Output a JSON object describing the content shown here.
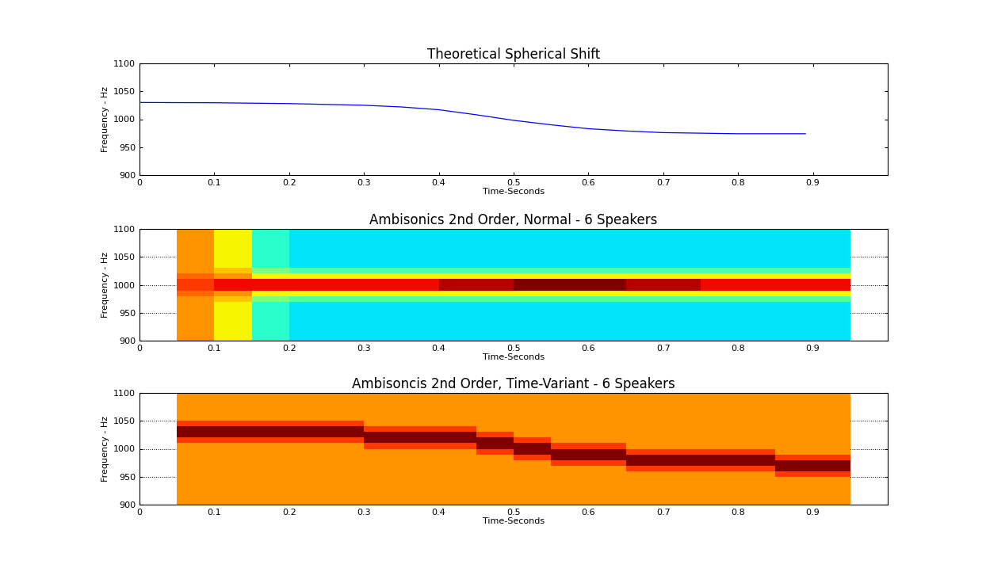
{
  "chart_data": [
    {
      "type": "line",
      "title": "Theoretical Spherical Shift",
      "x_label": "Time-Seconds",
      "y_label": "Frequency - Hz",
      "x": [
        0,
        0.1,
        0.2,
        0.3,
        0.35,
        0.4,
        0.45,
        0.5,
        0.55,
        0.6,
        0.65,
        0.7,
        0.75,
        0.8,
        0.89
      ],
      "series": [
        {
          "name": "Theoretical Spherical Shift",
          "color": "#0000ff",
          "values": [
            1030,
            1029.5,
            1028,
            1025,
            1022,
            1017,
            1008,
            998,
            990,
            983,
            979,
            976,
            975,
            974,
            974
          ]
        }
      ],
      "xlim": [
        0,
        1
      ],
      "xticks": [
        0,
        0.1,
        0.2,
        0.3,
        0.4,
        0.5,
        0.6,
        0.7,
        0.8,
        0.9
      ],
      "ylim": [
        900,
        1100
      ],
      "yticks": [
        900,
        950,
        1000,
        1050,
        1100
      ],
      "grid": false
    },
    {
      "type": "heatmap",
      "title": "Ambisonics 2nd Order, Normal - 6 Speakers",
      "x_label": "Time-Seconds",
      "y_label": "Frequency - Hz",
      "x_edges": [
        0.05,
        0.1,
        0.15,
        0.2,
        0.25,
        0.3,
        0.35,
        0.4,
        0.45,
        0.5,
        0.55,
        0.6,
        0.65,
        0.7,
        0.75,
        0.8,
        0.85,
        0.9,
        0.95
      ],
      "y_edges": [
        900,
        910,
        920,
        930,
        940,
        950,
        960,
        970,
        980,
        990,
        1000,
        1010,
        1020,
        1030,
        1040,
        1050,
        1060,
        1070,
        1080,
        1090,
        1100
      ],
      "zlim": [
        0,
        10
      ],
      "cells": [
        [
          7.5,
          6.5,
          4,
          3.5,
          3.5,
          3.5,
          3.5,
          3.5,
          3.5,
          3.5,
          3.5,
          3.5,
          3.5,
          3.5,
          3.5,
          3.5,
          3.5,
          3.5
        ],
        [
          7.5,
          6.5,
          4,
          3.5,
          3.5,
          3.5,
          3.5,
          3.5,
          3.5,
          3.5,
          3.5,
          3.5,
          3.5,
          3.5,
          3.5,
          3.5,
          3.5,
          3.5
        ],
        [
          7.5,
          6.5,
          4,
          3.5,
          3.5,
          3.5,
          3.5,
          3.5,
          3.5,
          3.5,
          3.5,
          3.5,
          3.5,
          3.5,
          3.5,
          3.5,
          3.5,
          3.5
        ],
        [
          7.5,
          6.5,
          4,
          3.5,
          3.5,
          3.5,
          3.5,
          3.5,
          3.5,
          3.5,
          3.5,
          3.5,
          3.5,
          3.5,
          3.5,
          3.5,
          3.5,
          3.5
        ],
        [
          7.5,
          6.5,
          4,
          3.5,
          3.5,
          3.5,
          3.5,
          3.5,
          3.5,
          3.5,
          3.5,
          3.5,
          3.5,
          3.5,
          3.5,
          3.5,
          3.5,
          3.5
        ],
        [
          7.5,
          6.5,
          4,
          3.5,
          3.5,
          3.5,
          3.5,
          3.5,
          3.5,
          3.5,
          3.5,
          3.5,
          3.5,
          3.5,
          3.5,
          3.5,
          3.5,
          3.5
        ],
        [
          7.5,
          6.5,
          4,
          3.5,
          3.5,
          3.5,
          3.5,
          3.5,
          3.5,
          3.5,
          3.5,
          3.5,
          3.5,
          3.5,
          3.5,
          3.5,
          3.5,
          3.5
        ],
        [
          7.5,
          7,
          5,
          4.5,
          4.5,
          4.5,
          4.5,
          4.5,
          4.5,
          4.5,
          4.5,
          4.5,
          4.5,
          4.5,
          4.5,
          4.5,
          4.5,
          4.5
        ],
        [
          8,
          7.5,
          6.5,
          6.5,
          6.5,
          6.5,
          6.5,
          6.5,
          6.5,
          6.5,
          6.5,
          6.5,
          6.5,
          6.5,
          6.5,
          6.5,
          6.5,
          6.5
        ],
        [
          8.5,
          9,
          9,
          9,
          9,
          9,
          9,
          9.5,
          9.5,
          10,
          10,
          10,
          9.5,
          9.5,
          9,
          9,
          9,
          9
        ],
        [
          8.5,
          9,
          9,
          9,
          9,
          9,
          9,
          9.5,
          9.5,
          10,
          10,
          10,
          9.5,
          9.5,
          9,
          9,
          9,
          9
        ],
        [
          8,
          7.5,
          6.5,
          6.5,
          6.5,
          6.5,
          6.5,
          6.5,
          6.5,
          6.5,
          6.5,
          6.5,
          6.5,
          6.5,
          6.5,
          6.5,
          6.5,
          6.5
        ],
        [
          7.5,
          7,
          5,
          4.5,
          4.5,
          4.5,
          4.5,
          4.5,
          4.5,
          4.5,
          4.5,
          4.5,
          4.5,
          4.5,
          4.5,
          4.5,
          4.5,
          4.5
        ],
        [
          7.5,
          6.5,
          4,
          3.5,
          3.5,
          3.5,
          3.5,
          3.5,
          3.5,
          3.5,
          3.5,
          3.5,
          3.5,
          3.5,
          3.5,
          3.5,
          3.5,
          3.5
        ],
        [
          7.5,
          6.5,
          4,
          3.5,
          3.5,
          3.5,
          3.5,
          3.5,
          3.5,
          3.5,
          3.5,
          3.5,
          3.5,
          3.5,
          3.5,
          3.5,
          3.5,
          3.5
        ],
        [
          7.5,
          6.5,
          4,
          3.5,
          3.5,
          3.5,
          3.5,
          3.5,
          3.5,
          3.5,
          3.5,
          3.5,
          3.5,
          3.5,
          3.5,
          3.5,
          3.5,
          3.5
        ],
        [
          7.5,
          6.5,
          4,
          3.5,
          3.5,
          3.5,
          3.5,
          3.5,
          3.5,
          3.5,
          3.5,
          3.5,
          3.5,
          3.5,
          3.5,
          3.5,
          3.5,
          3.5
        ],
        [
          7.5,
          6.5,
          4,
          3.5,
          3.5,
          3.5,
          3.5,
          3.5,
          3.5,
          3.5,
          3.5,
          3.5,
          3.5,
          3.5,
          3.5,
          3.5,
          3.5,
          3.5
        ],
        [
          7.5,
          6.5,
          4,
          3.5,
          3.5,
          3.5,
          3.5,
          3.5,
          3.5,
          3.5,
          3.5,
          3.5,
          3.5,
          3.5,
          3.5,
          3.5,
          3.5,
          3.5
        ],
        [
          7.5,
          6.5,
          4,
          3.5,
          3.5,
          3.5,
          3.5,
          3.5,
          3.5,
          3.5,
          3.5,
          3.5,
          3.5,
          3.5,
          3.5,
          3.5,
          3.5,
          3.5
        ]
      ],
      "xlim": [
        0,
        1
      ],
      "xticks": [
        0,
        0.1,
        0.2,
        0.3,
        0.4,
        0.5,
        0.6,
        0.7,
        0.8,
        0.9
      ],
      "ylim": [
        900,
        1100
      ],
      "yticks": [
        900,
        950,
        1000,
        1050,
        1100
      ],
      "grid": true
    },
    {
      "type": "heatmap",
      "title": "Ambisoncis 2nd Order, Time-Variant - 6 Speakers",
      "x_label": "Time-Seconds",
      "y_label": "Frequency - Hz",
      "x_edges": [
        0.05,
        0.1,
        0.15,
        0.2,
        0.25,
        0.3,
        0.35,
        0.4,
        0.45,
        0.5,
        0.55,
        0.6,
        0.65,
        0.7,
        0.75,
        0.8,
        0.85,
        0.9,
        0.95
      ],
      "y_edges": [
        900,
        910,
        920,
        930,
        940,
        950,
        960,
        970,
        980,
        990,
        1000,
        1010,
        1020,
        1030,
        1040,
        1050,
        1060,
        1070,
        1080,
        1090,
        1100
      ],
      "zlim": [
        0,
        10
      ],
      "cells": [
        [
          7.5,
          7.5,
          7.5,
          7.5,
          7.5,
          7.5,
          7.5,
          7.5,
          7.5,
          7.5,
          7.5,
          7.5,
          7.5,
          7.5,
          7.5,
          7.5,
          7.5,
          7.5
        ],
        [
          7.5,
          7.5,
          7.5,
          7.5,
          7.5,
          7.5,
          7.5,
          7.5,
          7.5,
          7.5,
          7.5,
          7.5,
          7.5,
          7.5,
          7.5,
          7.5,
          7.5,
          7.5
        ],
        [
          7.5,
          7.5,
          7.5,
          7.5,
          7.5,
          7.5,
          7.5,
          7.5,
          7.5,
          7.5,
          7.5,
          7.5,
          7.5,
          7.5,
          7.5,
          7.5,
          7.5,
          7.5
        ],
        [
          7.5,
          7.5,
          7.5,
          7.5,
          7.5,
          7.5,
          7.5,
          7.5,
          7.5,
          7.5,
          7.5,
          7.5,
          7.5,
          7.5,
          7.5,
          7.5,
          7.5,
          7.5
        ],
        [
          7.5,
          7.5,
          7.5,
          7.5,
          7.5,
          7.5,
          7.5,
          7.5,
          7.5,
          7.5,
          7.5,
          7.5,
          7.5,
          7.5,
          7.5,
          7.5,
          7.5,
          7.5
        ],
        [
          7.5,
          7.5,
          7.5,
          7.5,
          7.5,
          7.5,
          7.5,
          7.5,
          7.5,
          7.5,
          7.5,
          7.5,
          7.5,
          7.5,
          7.5,
          7.5,
          8.5,
          8.5
        ],
        [
          7.5,
          7.5,
          7.5,
          7.5,
          7.5,
          7.5,
          7.5,
          7.5,
          7.5,
          7.5,
          7.5,
          7.5,
          8.5,
          8.5,
          8.5,
          8.5,
          10,
          10
        ],
        [
          7.5,
          7.5,
          7.5,
          7.5,
          7.5,
          7.5,
          7.5,
          7.5,
          7.5,
          7.5,
          8.5,
          8.5,
          10,
          10,
          10,
          10,
          10,
          10
        ],
        [
          7.5,
          7.5,
          7.5,
          7.5,
          7.5,
          7.5,
          7.5,
          7.5,
          7.5,
          8.5,
          10,
          10,
          10,
          10,
          10,
          10,
          8.5,
          8.5
        ],
        [
          7.5,
          7.5,
          7.5,
          7.5,
          7.5,
          7.5,
          7.5,
          7.5,
          8.5,
          10,
          10,
          10,
          8.5,
          8.5,
          8.5,
          8.5,
          7.5,
          7.5
        ],
        [
          7.5,
          7.5,
          7.5,
          7.5,
          7.5,
          8.5,
          8.5,
          8.5,
          10,
          10,
          8.5,
          8.5,
          7.5,
          7.5,
          7.5,
          7.5,
          7.5,
          7.5
        ],
        [
          8.5,
          8.5,
          8.5,
          8.5,
          8.5,
          10,
          10,
          10,
          10,
          8.5,
          7.5,
          7.5,
          7.5,
          7.5,
          7.5,
          7.5,
          7.5,
          7.5
        ],
        [
          10,
          10,
          10,
          10,
          10,
          10,
          10,
          10,
          8.5,
          7.5,
          7.5,
          7.5,
          7.5,
          7.5,
          7.5,
          7.5,
          7.5,
          7.5
        ],
        [
          10,
          10,
          10,
          10,
          10,
          8.5,
          8.5,
          8.5,
          7.5,
          7.5,
          7.5,
          7.5,
          7.5,
          7.5,
          7.5,
          7.5,
          7.5,
          7.5
        ],
        [
          8.5,
          8.5,
          8.5,
          8.5,
          8.5,
          7.5,
          7.5,
          7.5,
          7.5,
          7.5,
          7.5,
          7.5,
          7.5,
          7.5,
          7.5,
          7.5,
          7.5,
          7.5
        ],
        [
          7.5,
          7.5,
          7.5,
          7.5,
          7.5,
          7.5,
          7.5,
          7.5,
          7.5,
          7.5,
          7.5,
          7.5,
          7.5,
          7.5,
          7.5,
          7.5,
          7.5,
          7.5
        ],
        [
          7.5,
          7.5,
          7.5,
          7.5,
          7.5,
          7.5,
          7.5,
          7.5,
          7.5,
          7.5,
          7.5,
          7.5,
          7.5,
          7.5,
          7.5,
          7.5,
          7.5,
          7.5
        ],
        [
          7.5,
          7.5,
          7.5,
          7.5,
          7.5,
          7.5,
          7.5,
          7.5,
          7.5,
          7.5,
          7.5,
          7.5,
          7.5,
          7.5,
          7.5,
          7.5,
          7.5,
          7.5
        ],
        [
          7.5,
          7.5,
          7.5,
          7.5,
          7.5,
          7.5,
          7.5,
          7.5,
          7.5,
          7.5,
          7.5,
          7.5,
          7.5,
          7.5,
          7.5,
          7.5,
          7.5,
          7.5
        ],
        [
          7.5,
          7.5,
          7.5,
          7.5,
          7.5,
          7.5,
          7.5,
          7.5,
          7.5,
          7.5,
          7.5,
          7.5,
          7.5,
          7.5,
          7.5,
          7.5,
          7.5,
          7.5
        ]
      ],
      "xlim": [
        0,
        1
      ],
      "xticks": [
        0,
        0.1,
        0.2,
        0.3,
        0.4,
        0.5,
        0.6,
        0.7,
        0.8,
        0.9
      ],
      "ylim": [
        900,
        1100
      ],
      "yticks": [
        900,
        950,
        1000,
        1050,
        1100
      ],
      "grid": true
    }
  ]
}
